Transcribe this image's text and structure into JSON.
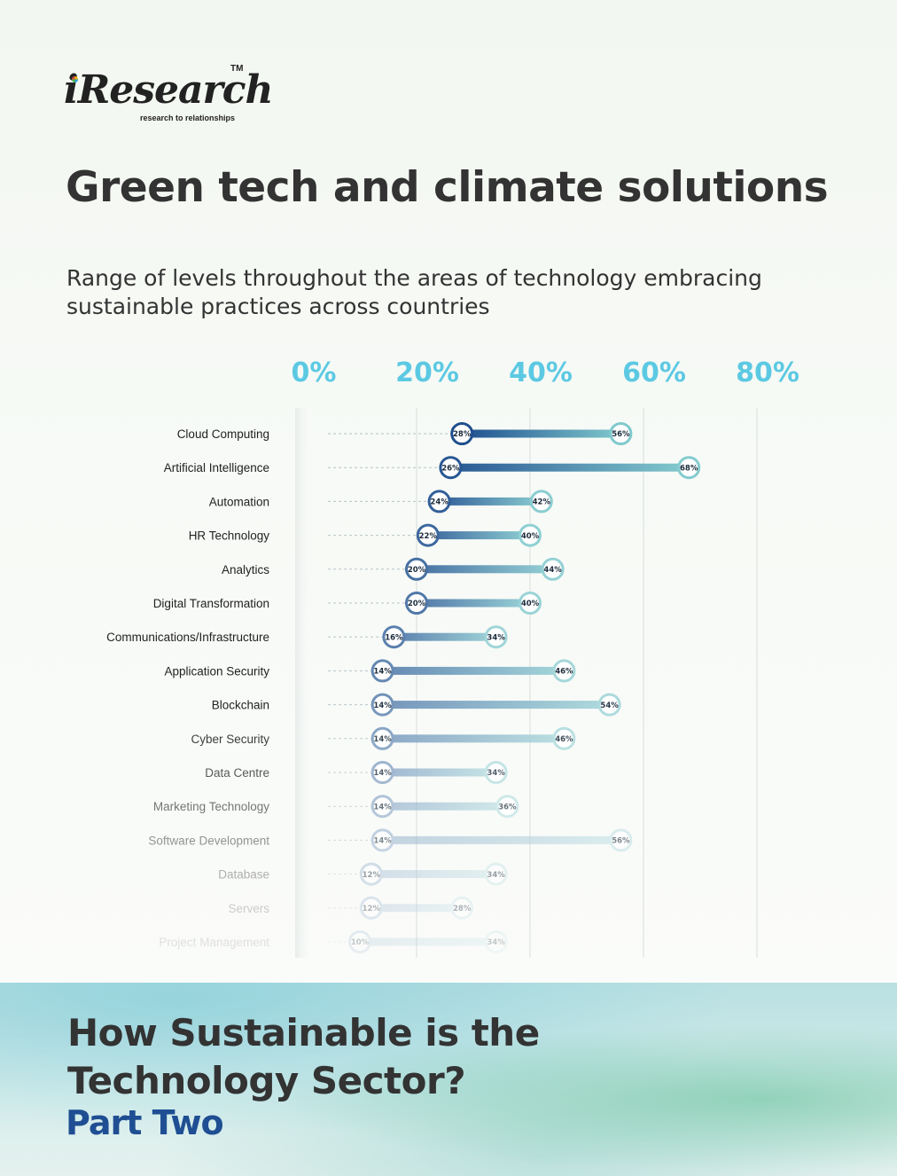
{
  "logo": {
    "word": "iResearch",
    "tm": "TM",
    "tagline": "research to relationships"
  },
  "title": "Green tech and climate solutions",
  "subtitle": "Range of levels throughout the areas of technology embracing sustainable practices across countries",
  "footer": {
    "line1": "How Sustainable is the",
    "line2": "Technology Sector?",
    "part": "Part Two"
  },
  "colors": {
    "dark_blue": "#1e4f8e",
    "teal": "#7fc9cd",
    "axis_label": "#5cc9e3",
    "text": "#333333"
  },
  "chart_data": {
    "type": "dumbbell",
    "xlim": [
      0,
      80
    ],
    "x_ticks": [
      0,
      20,
      40,
      60,
      80
    ],
    "x_tick_labels": [
      "0%",
      "20%",
      "40%",
      "60%",
      "80%"
    ],
    "grid": "vertical",
    "categories": [
      "Cloud Computing",
      "Artificial Intelligence",
      "Automation",
      "HR Technology",
      "Analytics",
      "Digital Transformation",
      "Communications/Infrastructure",
      "Application Security",
      "Blockchain",
      "Cyber Security",
      "Data Centre",
      "Marketing Technology",
      "Software Development",
      "Database",
      "Servers",
      "Project Management"
    ],
    "low": [
      28,
      26,
      24,
      22,
      20,
      20,
      16,
      14,
      14,
      14,
      14,
      14,
      14,
      12,
      12,
      10
    ],
    "high": [
      56,
      68,
      42,
      40,
      44,
      40,
      34,
      46,
      54,
      46,
      34,
      36,
      56,
      34,
      28,
      34
    ],
    "low_labels": [
      "28%",
      "26%",
      "24%",
      "22%",
      "20%",
      "20%",
      "16%",
      "14%",
      "14%",
      "14%",
      "14%",
      "14%",
      "14%",
      "12%",
      "12%",
      "10%"
    ],
    "high_labels": [
      "56%",
      "68%",
      "42%",
      "40%",
      "44%",
      "40%",
      "34%",
      "46%",
      "54%",
      "46%",
      "34%",
      "36%",
      "56%",
      "34%",
      "28%",
      "34%"
    ]
  }
}
